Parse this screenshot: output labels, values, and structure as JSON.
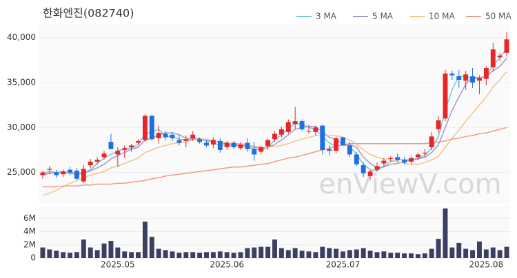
{
  "chart_data": [
    {
      "type": "candlestick",
      "title": "한화엔진(082740)",
      "watermark": "enViewV.com",
      "up_color": "#e8262a",
      "down_color": "#1e6fe0",
      "open": [
        24700,
        25300,
        25000,
        24800,
        25300,
        25200,
        24000,
        25800,
        26200,
        26700,
        28400,
        27000,
        27500,
        27800,
        28300,
        28600,
        31300,
        28800,
        29300,
        29200,
        28600,
        28500,
        28800,
        28700,
        28300,
        28100,
        28500,
        27800,
        28300,
        27700,
        28300,
        27600,
        27300,
        27900,
        28700,
        29200,
        29500,
        30400,
        30700,
        29600,
        29500,
        30200,
        27600,
        27400,
        28900,
        28000,
        27000,
        25800,
        24600,
        25300,
        26000,
        26500,
        26700,
        26400,
        26200,
        26700,
        27100,
        27800,
        29800,
        31000,
        36000,
        35700,
        35200,
        35700,
        35200,
        35400,
        36700,
        37800,
        38300
      ],
      "high": [
        25200,
        25700,
        25300,
        25300,
        25600,
        25500,
        25800,
        26500,
        26700,
        27400,
        29300,
        27800,
        28000,
        28200,
        28700,
        31500,
        31400,
        30200,
        29600,
        29500,
        29200,
        29100,
        29600,
        28900,
        28600,
        28900,
        28800,
        28500,
        28500,
        28400,
        28800,
        28400,
        28000,
        28800,
        29600,
        30100,
        30900,
        32300,
        30900,
        30300,
        30200,
        30300,
        28000,
        29000,
        29000,
        28400,
        27300,
        26100,
        25300,
        26100,
        26600,
        26800,
        27100,
        26700,
        26800,
        27200,
        27600,
        29500,
        31300,
        36400,
        36300,
        36400,
        36300,
        36600,
        35800,
        36800,
        39400,
        38300,
        40600
      ],
      "low": [
        24300,
        24800,
        24400,
        24500,
        24700,
        24200,
        23800,
        25500,
        25900,
        26400,
        27600,
        25600,
        26600,
        27300,
        28000,
        28400,
        28500,
        28200,
        28600,
        28500,
        28000,
        27800,
        28500,
        28200,
        27800,
        27700,
        27200,
        27500,
        27600,
        27500,
        27300,
        26300,
        27000,
        27500,
        28400,
        28900,
        29300,
        29800,
        29600,
        29300,
        29100,
        27000,
        26900,
        27100,
        27900,
        26700,
        25700,
        24500,
        24200,
        25100,
        25600,
        26200,
        26200,
        25900,
        25900,
        26400,
        26700,
        27500,
        29400,
        30700,
        35300,
        34400,
        34200,
        34400,
        33700,
        34700,
        36200,
        37400,
        37900
      ],
      "close": [
        25000,
        25400,
        24700,
        25100,
        25000,
        24300,
        25400,
        26200,
        26400,
        27100,
        27600,
        27400,
        27700,
        28000,
        28500,
        31300,
        28700,
        29400,
        28900,
        28800,
        28300,
        28700,
        29200,
        28400,
        28000,
        28600,
        27500,
        28300,
        27800,
        28100,
        27600,
        27000,
        27800,
        28600,
        29300,
        29800,
        30600,
        30700,
        29800,
        29600,
        30000,
        27500,
        27400,
        28800,
        28000,
        27000,
        25900,
        24900,
        25100,
        25700,
        26300,
        26600,
        26400,
        26100,
        26600,
        27000,
        27200,
        29000,
        30800,
        36000,
        35800,
        35300,
        35900,
        35000,
        35500,
        36600,
        38700,
        38000,
        39800
      ],
      "series": [
        {
          "name": "3 MA",
          "color": "#6ccbd0",
          "values": [
            24900,
            25100,
            25000,
            25100,
            24900,
            24800,
            24900,
            25300,
            26000,
            26600,
            27000,
            27400,
            27600,
            27700,
            28100,
            29300,
            29500,
            29800,
            29000,
            29000,
            28700,
            28600,
            28700,
            28800,
            28500,
            28300,
            28000,
            28100,
            27900,
            28100,
            27800,
            27600,
            27500,
            27800,
            28600,
            29200,
            29900,
            30400,
            30400,
            30000,
            29800,
            29000,
            28300,
            27900,
            28100,
            27900,
            27000,
            25900,
            25300,
            25200,
            25700,
            26200,
            26400,
            26400,
            26400,
            26600,
            26900,
            27700,
            29000,
            31900,
            34200,
            35700,
            35700,
            35400,
            35500,
            35700,
            36900,
            37800,
            38800
          ]
        },
        {
          "name": "5 MA",
          "color": "#a995c8",
          "values": [
            24700,
            24900,
            25000,
            25000,
            25000,
            24900,
            24900,
            25200,
            25500,
            25900,
            26500,
            26900,
            27200,
            27600,
            27800,
            28600,
            28800,
            29200,
            29400,
            29400,
            29200,
            28800,
            28800,
            28700,
            28500,
            28600,
            28300,
            28200,
            28000,
            28100,
            27900,
            27800,
            27700,
            27800,
            28100,
            28600,
            29200,
            29800,
            30000,
            30100,
            30100,
            29500,
            28900,
            28700,
            28100,
            28100,
            27800,
            26700,
            26000,
            25500,
            25600,
            25900,
            26000,
            26200,
            26400,
            26500,
            26700,
            27200,
            28100,
            30000,
            31900,
            33400,
            34800,
            35600,
            35500,
            35700,
            36300,
            36800,
            37700
          ]
        },
        {
          "name": "10 MA",
          "color": "#f2c48c",
          "values": [
            22400,
            22700,
            23000,
            23400,
            23800,
            24100,
            24400,
            24700,
            24900,
            25100,
            25500,
            25700,
            26000,
            26300,
            26600,
            27200,
            27500,
            27800,
            28000,
            28200,
            28300,
            28400,
            28600,
            28700,
            28700,
            28500,
            28400,
            28300,
            28200,
            28200,
            28100,
            27900,
            27800,
            27800,
            27900,
            28000,
            28200,
            28500,
            28700,
            28900,
            29100,
            29100,
            29100,
            29100,
            28900,
            28600,
            28100,
            27500,
            27000,
            26700,
            26500,
            26400,
            26200,
            26000,
            25900,
            25900,
            26100,
            26400,
            26800,
            27800,
            28800,
            29700,
            30700,
            31600,
            32500,
            33400,
            34500,
            35300,
            36200
          ]
        },
        {
          "name": "50 MA",
          "color": "#f19a85",
          "values": [
            23400,
            23400,
            23400,
            23500,
            23500,
            23500,
            23600,
            23600,
            23700,
            23700,
            23700,
            23800,
            23800,
            23900,
            24000,
            24100,
            24300,
            24400,
            24600,
            24700,
            24800,
            24900,
            25000,
            25100,
            25200,
            25300,
            25400,
            25500,
            25600,
            25600,
            25700,
            25800,
            25900,
            26000,
            26200,
            26400,
            26600,
            26700,
            26900,
            27100,
            27300,
            27500,
            27700,
            27900,
            28100,
            28200,
            28200,
            28200,
            28200,
            28200,
            28200,
            28200,
            28200,
            28200,
            28200,
            28200,
            28200,
            28300,
            28400,
            28500,
            28700,
            28800,
            29000,
            29100,
            29300,
            29400,
            29600,
            29800,
            30000
          ]
        }
      ],
      "ylim": [
        21600,
        41500
      ],
      "yticks": [
        {
          "value": 25000,
          "label": "25,000"
        },
        {
          "value": 30000,
          "label": "30,000"
        },
        {
          "value": 35000,
          "label": "35,000"
        },
        {
          "value": 40000,
          "label": "40,000"
        }
      ],
      "grid": true
    },
    {
      "type": "bar",
      "color": "#3d3f62",
      "categories": [
        null,
        null,
        null,
        null,
        null,
        null,
        null,
        null,
        null,
        null,
        null,
        "2025.05",
        null,
        null,
        null,
        null,
        null,
        null,
        null,
        null,
        null,
        null,
        null,
        null,
        null,
        null,
        null,
        "2025.06",
        null,
        null,
        null,
        null,
        null,
        null,
        null,
        null,
        null,
        null,
        null,
        null,
        null,
        null,
        null,
        null,
        "2025.07",
        null,
        null,
        null,
        null,
        null,
        null,
        null,
        null,
        null,
        null,
        null,
        null,
        null,
        null,
        null,
        null,
        null,
        null,
        null,
        null,
        "2025.08",
        null,
        null,
        null
      ],
      "values": [
        1600000,
        1300000,
        1100000,
        900000,
        800000,
        900000,
        2800000,
        1600000,
        1200000,
        2200000,
        2600000,
        1600000,
        1000000,
        900000,
        900000,
        5500000,
        3200000,
        1400000,
        1200000,
        1000000,
        800000,
        900000,
        900000,
        800000,
        900000,
        900000,
        1000000,
        900000,
        800000,
        900000,
        1500000,
        1600000,
        1700000,
        1700000,
        2800000,
        1500000,
        1200000,
        1500000,
        1100000,
        1000000,
        900000,
        1700000,
        1500000,
        1400000,
        1000000,
        1200000,
        1300000,
        1500000,
        1100000,
        900000,
        1000000,
        800000,
        800000,
        700000,
        700000,
        600000,
        700000,
        1400000,
        2900000,
        7500000,
        1600000,
        2300000,
        1400000,
        1200000,
        2500000,
        1300000,
        1600000,
        1200000,
        1700000
      ],
      "ylim": [
        0,
        7800000
      ],
      "yticks": [
        0,
        {
          "value": 2000000,
          "label": "2M"
        },
        {
          "value": 4000000,
          "label": "4M"
        },
        {
          "value": 6000000,
          "label": "6M"
        }
      ],
      "grid": true
    }
  ]
}
